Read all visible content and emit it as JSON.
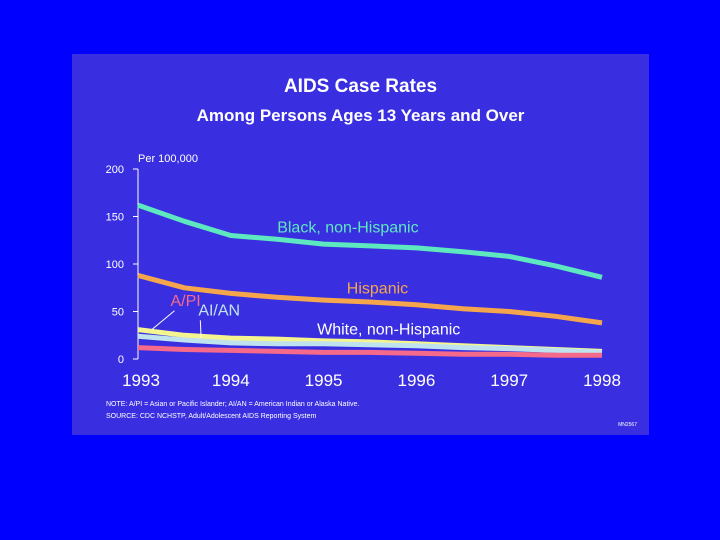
{
  "slide": {
    "title": "AIDS Case Rates",
    "subtitle": "Among Persons Ages 13 Years and Over",
    "note": "NOTE:  A/PI = Asian or Pacific Islander; AI/AN = American Indian or Alaska Native.",
    "source": "SOURCE:  CDC NCHSTP, Adult/Adolescent AIDS Reporting System",
    "ref_code": "MN2567",
    "background_color": "#3a2fe0",
    "page_color": "#0000ff"
  },
  "chart_data": {
    "type": "line",
    "title": "AIDS Case Rates",
    "subtitle": "Among Persons Ages 13 Years and Over",
    "ylabel": "Per 100,000",
    "xlabel": "",
    "ylim": [
      0,
      200
    ],
    "yticks": [
      "0",
      "50",
      "100",
      "150",
      "200"
    ],
    "xlim": [
      1993,
      1998
    ],
    "xticks": [
      "1993",
      "1994",
      "1995",
      "1996",
      "1997",
      "1998"
    ],
    "grid": false,
    "series": [
      {
        "name": "Black, non-Hispanic",
        "color": "#5ee8c0",
        "x": [
          1993,
          1993.5,
          1994,
          1994.5,
          1995,
          1995.5,
          1996,
          1996.5,
          1997,
          1997.5,
          1998
        ],
        "values": [
          162,
          145,
          130,
          126,
          121,
          119,
          117,
          113,
          108,
          98,
          86
        ]
      },
      {
        "name": "Hispanic",
        "color": "#f5a64c",
        "x": [
          1993,
          1993.5,
          1994,
          1994.5,
          1995,
          1995.5,
          1996,
          1996.5,
          1997,
          1997.5,
          1998
        ],
        "values": [
          88,
          75,
          69,
          65,
          62,
          60,
          57,
          53,
          50,
          45,
          38
        ]
      },
      {
        "name": "White, non-Hispanic",
        "color": "#f5f590",
        "x": [
          1993,
          1993.5,
          1994,
          1994.5,
          1995,
          1995.5,
          1996,
          1996.5,
          1997,
          1997.5,
          1998
        ],
        "values": [
          31,
          25,
          22,
          21,
          19,
          18,
          16,
          14,
          12,
          10,
          8
        ]
      },
      {
        "name": "AI/AN",
        "color": "#bfe3ee",
        "x": [
          1993,
          1993.5,
          1994,
          1994.5,
          1995,
          1995.5,
          1996,
          1996.5,
          1997,
          1997.5,
          1998
        ],
        "values": [
          24,
          20,
          17,
          16,
          16,
          15,
          14,
          12,
          11,
          9,
          7
        ]
      },
      {
        "name": "A/PI",
        "color": "#f56a8a",
        "x": [
          1993,
          1993.5,
          1994,
          1994.5,
          1995,
          1995.5,
          1996,
          1996.5,
          1997,
          1997.5,
          1998
        ],
        "values": [
          12,
          10,
          9,
          8,
          7,
          7,
          6,
          5,
          5,
          4,
          4
        ]
      }
    ],
    "annotations": [
      {
        "text": "Black, non-Hispanic",
        "color": "#5ee8c0",
        "x": 1994.5,
        "y": 133
      },
      {
        "text": "Hispanic",
        "color": "#f5a64c",
        "x": 1995.25,
        "y": 69
      },
      {
        "text": "White, non-Hispanic",
        "color": "#ffffff",
        "x": 1994.93,
        "y": 26
      },
      {
        "text": "A/PI",
        "color": "#f56a8a",
        "x": 1993.35,
        "y": 56,
        "pointer_to": [
          1993.15,
          31
        ]
      },
      {
        "text": "AI/AN",
        "color": "#bfe3ee",
        "x": 1993.65,
        "y": 46,
        "pointer_to": [
          1993.68,
          22
        ]
      }
    ]
  }
}
